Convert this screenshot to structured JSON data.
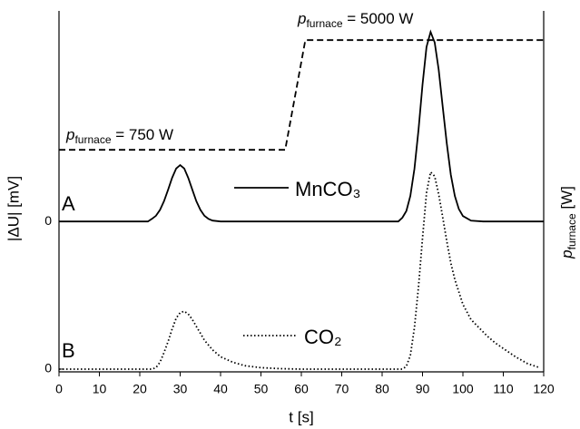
{
  "chart_data": [
    {
      "type": "line",
      "panel_label": "A",
      "ylabel": "|ΔU| [mV]",
      "y2label": {
        "symbol": "p",
        "subscript": "furnace",
        "text": " [W]"
      },
      "ylim": [
        -1.0,
        1.4
      ],
      "yticks": [
        0
      ],
      "y2lim": [
        -7850,
        6130
      ],
      "annotations": [
        {
          "symbol": "p",
          "subscript": "furnace",
          "text": " = 750 W"
        },
        {
          "symbol": "p",
          "subscript": "furnace",
          "text": " = 5000 W"
        }
      ],
      "series": [
        {
          "name": "MnCO₃",
          "color": "#000000",
          "linestyle": "solid",
          "x": [
            0,
            20,
            22,
            23,
            24,
            25,
            26,
            27,
            28,
            29,
            30,
            31,
            32,
            33,
            34,
            35,
            36,
            37,
            38,
            40,
            50,
            60,
            80,
            84,
            85,
            86,
            87,
            88,
            89,
            90,
            91,
            92,
            93,
            94,
            95,
            96,
            97,
            98,
            99,
            100,
            102,
            105,
            120
          ],
          "values": [
            0,
            0,
            0,
            0.017,
            0.038,
            0.077,
            0.135,
            0.211,
            0.29,
            0.352,
            0.375,
            0.352,
            0.29,
            0.211,
            0.135,
            0.077,
            0.038,
            0.017,
            0.006,
            0,
            0,
            0,
            0,
            0,
            0.025,
            0.07,
            0.17,
            0.35,
            0.61,
            0.91,
            1.16,
            1.26,
            1.19,
            1.01,
            0.76,
            0.52,
            0.31,
            0.17,
            0.083,
            0.036,
            0.005,
            0,
            0
          ]
        },
        {
          "color": "#000000",
          "linestyle": "dashed",
          "axis": "y2",
          "x": [
            0,
            56,
            61,
            120
          ],
          "values": [
            750,
            750,
            5000,
            5000
          ]
        }
      ]
    },
    {
      "type": "line",
      "panel_label": "B",
      "xlabel": "t [s]",
      "xlim": [
        0,
        120
      ],
      "xticks": [
        0,
        10,
        20,
        30,
        40,
        50,
        60,
        70,
        80,
        90,
        100,
        110,
        120
      ],
      "ylim": [
        -0.02,
        2.6
      ],
      "yticks": [
        0
      ],
      "series": [
        {
          "name": "CO₂",
          "color": "#000000",
          "linestyle": "dotted",
          "x": [
            0,
            23,
            24,
            25,
            26,
            27,
            28,
            29,
            30,
            31,
            32,
            33,
            34,
            35,
            36,
            38,
            40,
            43,
            46,
            50,
            55,
            60,
            85,
            86,
            87,
            88,
            89,
            90,
            91,
            92,
            93,
            94,
            95,
            96,
            97,
            98,
            100,
            102,
            104,
            106,
            108,
            110,
            113,
            116,
            119
          ],
          "values": [
            0,
            0,
            0.01,
            0.05,
            0.12,
            0.2,
            0.29,
            0.37,
            0.41,
            0.42,
            0.4,
            0.36,
            0.31,
            0.26,
            0.21,
            0.14,
            0.09,
            0.05,
            0.025,
            0.01,
            0.003,
            0,
            0,
            0.02,
            0.1,
            0.3,
            0.6,
            0.95,
            1.28,
            1.43,
            1.4,
            1.27,
            1.1,
            0.93,
            0.77,
            0.65,
            0.47,
            0.36,
            0.3,
            0.24,
            0.19,
            0.15,
            0.09,
            0.04,
            0.01
          ]
        }
      ]
    }
  ]
}
